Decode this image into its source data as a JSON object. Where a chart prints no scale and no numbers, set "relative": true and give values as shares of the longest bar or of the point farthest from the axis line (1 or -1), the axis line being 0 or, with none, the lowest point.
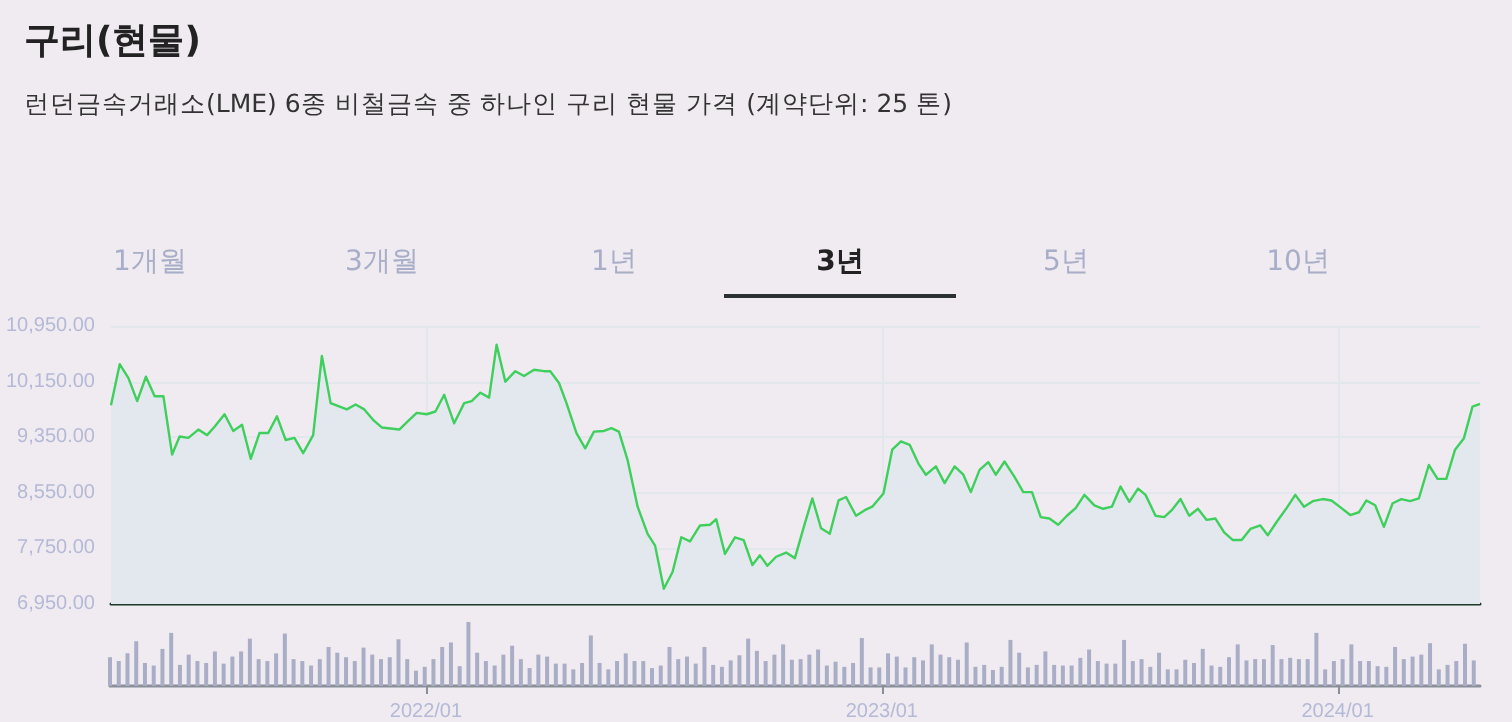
{
  "chart_data": [
    {
      "type": "area",
      "title": "구리(현물)",
      "subtitle": "런던금속거래소(LME) 6종 비철금속 중 하나인 구리 현물 가격 (계약단위: 25 톤)",
      "annotations": [
        "1개월",
        "3개월",
        "1년",
        "3년",
        "5년",
        "10년"
      ],
      "x": [
        "2021-04-23",
        "2021-04-30",
        "2021-05-07",
        "2021-05-14",
        "2021-05-21",
        "2021-05-28",
        "2021-06-04",
        "2021-06-11",
        "2021-06-17",
        "2021-06-24",
        "2021-07-02",
        "2021-07-09",
        "2021-07-15",
        "2021-07-23",
        "2021-07-30",
        "2021-08-06",
        "2021-08-13",
        "2021-08-20",
        "2021-08-27",
        "2021-09-03",
        "2021-09-10",
        "2021-09-17",
        "2021-09-24",
        "2021-10-02",
        "2021-10-09",
        "2021-10-16",
        "2021-10-29",
        "2021-11-05",
        "2021-11-12",
        "2021-11-19",
        "2021-11-26",
        "2021-12-10",
        "2021-12-17",
        "2021-12-24",
        "2022-01-01",
        "2022-01-08",
        "2022-01-15",
        "2022-01-23",
        "2022-01-31",
        "2022-02-06",
        "2022-02-13",
        "2022-02-20",
        "2022-02-26",
        "2022-03-05",
        "2022-03-13",
        "2022-03-20",
        "2022-03-28",
        "2022-04-05",
        "2022-04-10",
        "2022-04-17",
        "2022-04-23",
        "2022-05-01",
        "2022-05-08",
        "2022-05-15",
        "2022-05-23",
        "2022-05-29",
        "2022-06-04",
        "2022-06-11",
        "2022-06-19",
        "2022-06-27",
        "2022-07-03",
        "2022-07-10",
        "2022-07-17",
        "2022-07-24",
        "2022-07-31",
        "2022-08-08",
        "2022-08-16",
        "2022-08-21",
        "2022-08-28",
        "2022-09-05",
        "2022-09-12",
        "2022-09-19",
        "2022-09-25",
        "2022-10-01",
        "2022-10-08",
        "2022-10-16",
        "2022-10-23",
        "2022-10-31",
        "2022-11-06",
        "2022-11-13",
        "2022-11-20",
        "2022-11-27",
        "2022-12-03",
        "2022-12-11",
        "2022-12-18",
        "2022-12-24",
        "2023-01-02",
        "2023-01-09",
        "2023-01-16",
        "2023-01-23",
        "2023-01-30",
        "2023-02-05",
        "2023-02-13",
        "2023-02-20",
        "2023-02-28",
        "2023-03-07",
        "2023-03-13",
        "2023-03-20",
        "2023-03-27",
        "2023-04-02",
        "2023-04-09",
        "2023-04-17",
        "2023-04-24",
        "2023-05-01",
        "2023-05-08",
        "2023-05-15",
        "2023-05-22",
        "2023-05-29",
        "2023-06-05",
        "2023-06-12",
        "2023-06-20",
        "2023-06-27",
        "2023-07-04",
        "2023-07-11",
        "2023-07-18",
        "2023-07-25",
        "2023-07-31",
        "2023-08-08",
        "2023-08-15",
        "2023-08-21",
        "2023-08-28",
        "2023-09-04",
        "2023-09-11",
        "2023-09-18",
        "2023-09-25",
        "2023-10-02",
        "2023-10-09",
        "2023-10-16",
        "2023-10-23",
        "2023-10-31",
        "2023-11-06",
        "2023-11-13",
        "2023-11-21",
        "2023-11-28",
        "2023-12-05",
        "2023-12-12",
        "2023-12-20",
        "2023-12-27",
        "2024-01-04",
        "2024-01-11",
        "2024-01-18",
        "2024-01-24",
        "2024-01-31",
        "2024-02-07",
        "2024-02-14",
        "2024-02-21",
        "2024-02-28",
        "2024-03-06",
        "2024-03-14",
        "2024-03-21",
        "2024-03-28",
        "2024-04-04",
        "2024-04-11",
        "2024-04-18",
        "2024-04-24"
      ],
      "series": [
        {
          "color": "#3ecf5c",
          "values": [
            9810,
            10400,
            10200,
            9870,
            10220,
            9940,
            9940,
            9100,
            9360,
            9340,
            9460,
            9380,
            9500,
            9680,
            9440,
            9530,
            9040,
            9410,
            9410,
            9650,
            9310,
            9340,
            9120,
            9380,
            10520,
            9840,
            9750,
            9820,
            9750,
            9600,
            9490,
            9460,
            9580,
            9700,
            9680,
            9720,
            9960,
            9550,
            9840,
            9870,
            9990,
            9920,
            10680,
            10150,
            10300,
            10230,
            10320,
            10300,
            10300,
            10130,
            9840,
            9410,
            9190,
            9430,
            9440,
            9480,
            9430,
            9020,
            8350,
            7960,
            7790,
            7170,
            7410,
            7910,
            7850,
            8080,
            8090,
            8170,
            7670,
            7910,
            7870,
            7510,
            7650,
            7500,
            7630,
            7690,
            7610,
            8110,
            8470,
            8040,
            7960,
            8440,
            8490,
            8220,
            8300,
            8350,
            8540,
            9170,
            9290,
            9240,
            8970,
            8810,
            8930,
            8690,
            8930,
            8810,
            8560,
            8880,
            8990,
            8810,
            9000,
            8780,
            8560,
            8560,
            8200,
            8180,
            8090,
            8220,
            8330,
            8520,
            8370,
            8320,
            8350,
            8640,
            8420,
            8610,
            8520,
            8220,
            8200,
            8300,
            8460,
            8220,
            8320,
            8160,
            8180,
            7980,
            7870,
            7870,
            8030,
            8080,
            7940,
            8130,
            8330,
            8520,
            8350,
            8430,
            8460,
            8440,
            8330,
            8230,
            8270,
            8440,
            8370,
            8060,
            8400,
            8460,
            8430,
            8470,
            8950,
            8750,
            8750,
            9170,
            9330,
            9790,
            9830
          ]
        }
      ],
      "xlim": [
        "2021-04-23",
        "2024-04-24"
      ],
      "xticks": [
        {
          "value": "2022-01-01",
          "label": null
        },
        {
          "value": "2023-01-01",
          "label": null
        },
        {
          "value": "2024-01-01",
          "label": null
        }
      ],
      "ylim": [
        6950,
        10950
      ],
      "yticks": [
        {
          "value": 6950,
          "label": "6,950.00"
        },
        {
          "value": 7750,
          "label": "7,750.00"
        },
        {
          "value": 8550,
          "label": "8,550.00"
        },
        {
          "value": 9350,
          "label": "9,350.00"
        },
        {
          "value": 10150,
          "label": "10,150.00"
        },
        {
          "value": 10950,
          "label": "10,950.00"
        }
      ],
      "grid": true,
      "tick_labels": "y",
      "marker": "none"
    },
    {
      "type": "bar",
      "relative": true,
      "tick_labels": "x",
      "x": [
        "2021-04-23",
        "2021-04-30",
        "2021-05-07",
        "2021-05-14",
        "2021-05-21",
        "2021-05-28",
        "2021-06-04",
        "2021-06-11",
        "2021-06-18",
        "2021-06-25",
        "2021-07-02",
        "2021-07-09",
        "2021-07-16",
        "2021-07-23",
        "2021-07-30",
        "2021-08-06",
        "2021-08-13",
        "2021-08-20",
        "2021-08-27",
        "2021-09-03",
        "2021-09-10",
        "2021-09-17",
        "2021-09-24",
        "2021-10-01",
        "2021-10-08",
        "2021-10-15",
        "2021-10-22",
        "2021-10-29",
        "2021-11-05",
        "2021-11-12",
        "2021-11-19",
        "2021-11-26",
        "2021-12-03",
        "2021-12-10",
        "2021-12-17",
        "2021-12-24",
        "2021-12-31",
        "2022-01-07",
        "2022-01-14",
        "2022-01-21",
        "2022-01-28",
        "2022-02-04",
        "2022-02-11",
        "2022-02-18",
        "2022-02-25",
        "2022-03-04",
        "2022-03-11",
        "2022-03-18",
        "2022-03-25",
        "2022-04-01",
        "2022-04-08",
        "2022-04-15",
        "2022-04-22",
        "2022-04-29",
        "2022-05-06",
        "2022-05-13",
        "2022-05-20",
        "2022-05-27",
        "2022-06-03",
        "2022-06-10",
        "2022-06-17",
        "2022-06-24",
        "2022-07-01",
        "2022-07-08",
        "2022-07-15",
        "2022-07-22",
        "2022-07-29",
        "2022-08-05",
        "2022-08-12",
        "2022-08-19",
        "2022-08-26",
        "2022-09-02",
        "2022-09-09",
        "2022-09-16",
        "2022-09-23",
        "2022-09-30",
        "2022-10-07",
        "2022-10-14",
        "2022-10-21",
        "2022-10-28",
        "2022-11-04",
        "2022-11-11",
        "2022-11-18",
        "2022-11-25",
        "2022-12-02",
        "2022-12-09",
        "2022-12-16",
        "2022-12-23",
        "2022-12-30",
        "2023-01-06",
        "2023-01-13",
        "2023-01-20",
        "2023-01-27",
        "2023-02-03",
        "2023-02-10",
        "2023-02-17",
        "2023-02-24",
        "2023-03-03",
        "2023-03-10",
        "2023-03-17",
        "2023-03-24",
        "2023-03-31",
        "2023-04-07",
        "2023-04-14",
        "2023-04-21",
        "2023-04-28",
        "2023-05-05",
        "2023-05-12",
        "2023-05-19",
        "2023-05-26",
        "2023-06-02",
        "2023-06-09",
        "2023-06-16",
        "2023-06-23",
        "2023-06-30",
        "2023-07-07",
        "2023-07-14",
        "2023-07-21",
        "2023-07-28",
        "2023-08-04",
        "2023-08-11",
        "2023-08-18",
        "2023-08-25",
        "2023-09-01",
        "2023-09-08",
        "2023-09-15",
        "2023-09-22",
        "2023-09-29",
        "2023-10-06",
        "2023-10-13",
        "2023-10-20",
        "2023-10-27",
        "2023-11-03",
        "2023-11-10",
        "2023-11-17",
        "2023-11-24",
        "2023-12-01",
        "2023-12-08",
        "2023-12-15",
        "2023-12-22",
        "2023-12-29",
        "2024-01-05",
        "2024-01-12",
        "2024-01-19",
        "2024-01-26",
        "2024-02-02",
        "2024-02-09",
        "2024-02-16",
        "2024-02-23",
        "2024-03-01",
        "2024-03-08",
        "2024-03-15",
        "2024-03-22",
        "2024-03-29",
        "2024-04-05",
        "2024-04-12",
        "2024-04-19"
      ],
      "series": [
        {
          "color": "#a9aec6",
          "values": [
            0.45,
            0.39,
            0.51,
            0.7,
            0.36,
            0.32,
            0.58,
            0.83,
            0.33,
            0.49,
            0.39,
            0.36,
            0.54,
            0.35,
            0.46,
            0.54,
            0.74,
            0.42,
            0.39,
            0.51,
            0.82,
            0.42,
            0.39,
            0.32,
            0.42,
            0.61,
            0.52,
            0.45,
            0.39,
            0.6,
            0.49,
            0.42,
            0.45,
            0.73,
            0.42,
            0.24,
            0.3,
            0.42,
            0.61,
            0.68,
            0.31,
            1,
            0.52,
            0.39,
            0.32,
            0.49,
            0.63,
            0.42,
            0.28,
            0.49,
            0.46,
            0.35,
            0.35,
            0.26,
            0.36,
            0.79,
            0.36,
            0.26,
            0.39,
            0.51,
            0.39,
            0.39,
            0.28,
            0.32,
            0.61,
            0.42,
            0.46,
            0.35,
            0.61,
            0.33,
            0.3,
            0.4,
            0.48,
            0.74,
            0.55,
            0.39,
            0.49,
            0.65,
            0.41,
            0.42,
            0.49,
            0.57,
            0.32,
            0.38,
            0.3,
            0.36,
            0.75,
            0.29,
            0.29,
            0.51,
            0.46,
            0.29,
            0.45,
            0.4,
            0.65,
            0.49,
            0.45,
            0.41,
            0.68,
            0.3,
            0.33,
            0.25,
            0.3,
            0.72,
            0.52,
            0.29,
            0.33,
            0.54,
            0.33,
            0.32,
            0.32,
            0.44,
            0.57,
            0.39,
            0.35,
            0.35,
            0.72,
            0.39,
            0.42,
            0.3,
            0.52,
            0.26,
            0.26,
            0.41,
            0.36,
            0.58,
            0.32,
            0.3,
            0.45,
            0.65,
            0.4,
            0.42,
            0.42,
            0.64,
            0.42,
            0.44,
            0.42,
            0.42,
            0.83,
            0.26,
            0.39,
            0.42,
            0.65,
            0.39,
            0.39,
            0.31,
            0.3,
            0.61,
            0.42,
            0.46,
            0.49,
            0.67,
            0.26,
            0.33,
            0.39,
            0.66,
            0.4
          ]
        }
      ],
      "xlim": [
        "2021-04-23",
        "2024-04-24"
      ],
      "xticks": [
        {
          "value": "2022-01-01",
          "label": "2022/01"
        },
        {
          "value": "2023-01-01",
          "label": "2023/01"
        },
        {
          "value": "2024-01-01",
          "label": "2024/01"
        }
      ]
    }
  ]
}
